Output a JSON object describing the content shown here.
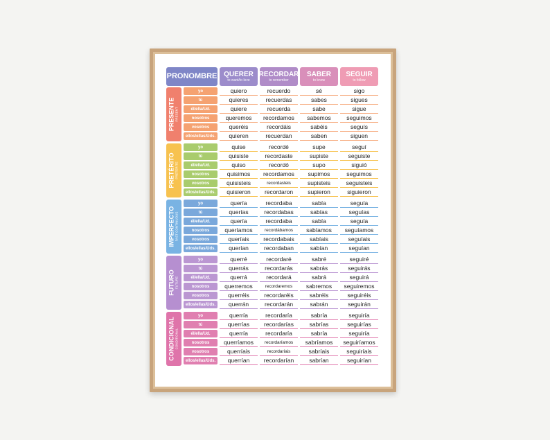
{
  "header": {
    "pronoun": "PRONOMBRE",
    "verbs": [
      {
        "name": "QUERER",
        "sub": "to want/to love"
      },
      {
        "name": "RECORDAR",
        "sub": "to remember"
      },
      {
        "name": "SABER",
        "sub": "to know"
      },
      {
        "name": "SEGUIR",
        "sub": "to follow"
      }
    ]
  },
  "colors": {
    "pronoun_header": "#7f86c7",
    "verb_headers": [
      "#9c8ccb",
      "#b08cc8",
      "#d98fba",
      "#ef9cb4"
    ]
  },
  "pronouns": [
    "yo",
    "tú",
    "él/ella/Ud.",
    "nosotros",
    "vosotros",
    "ellos/ellas/Uds."
  ],
  "tenses": [
    {
      "name": "PRESENTE",
      "english": "PRESENT",
      "color": "#f0806d",
      "pron_color": "#f5a271",
      "line_color": "#f5a271",
      "rows": [
        [
          "quiero",
          "recuerdo",
          "sé",
          "sigo"
        ],
        [
          "quieres",
          "recuerdas",
          "sabes",
          "sigues"
        ],
        [
          "quiere",
          "recuerda",
          "sabe",
          "sigue"
        ],
        [
          "queremos",
          "recordamos",
          "sabemos",
          "seguimos"
        ],
        [
          "queréis",
          "recordáis",
          "sabéis",
          "seguís"
        ],
        [
          "quieren",
          "recuerdan",
          "saben",
          "siguen"
        ]
      ]
    },
    {
      "name": "PRETÉRITO",
      "english": "PRETERITE",
      "color": "#f7c24f",
      "pron_color": "#a9cc6d",
      "line_color": "#f7c24f",
      "rows": [
        [
          "quise",
          "recordé",
          "supe",
          "seguí"
        ],
        [
          "quisiste",
          "recordaste",
          "supiste",
          "seguiste"
        ],
        [
          "quiso",
          "recordó",
          "supo",
          "siguió"
        ],
        [
          "quisimos",
          "recordamos",
          "supimos",
          "seguimos"
        ],
        [
          "quisisteis",
          "recordasteis",
          "supisteis",
          "seguisteis"
        ],
        [
          "quisieron",
          "recordaron",
          "supieron",
          "siguieron"
        ]
      ]
    },
    {
      "name": "IMPERFECTO",
      "english": "PAST CONTINUOUS",
      "color": "#79b3e3",
      "pron_color": "#7aa8db",
      "line_color": "#79b3e3",
      "rows": [
        [
          "quería",
          "recordaba",
          "sabía",
          "seguía"
        ],
        [
          "querías",
          "recordabas",
          "sabías",
          "seguías"
        ],
        [
          "quería",
          "recordaba",
          "sabía",
          "seguía"
        ],
        [
          "queríamos",
          "recordábamos",
          "sabíamos",
          "seguíamos"
        ],
        [
          "queríais",
          "recordabais",
          "sabíais",
          "seguíais"
        ],
        [
          "querían",
          "recordaban",
          "sabían",
          "seguían"
        ]
      ]
    },
    {
      "name": "FUTURO",
      "english": "FUTURE",
      "color": "#b68fd0",
      "pron_color": "#bb97d2",
      "line_color": "#b68fd0",
      "rows": [
        [
          "querré",
          "recordaré",
          "sabré",
          "seguiré"
        ],
        [
          "querrás",
          "recordarás",
          "sabrás",
          "seguirás"
        ],
        [
          "querrá",
          "recordará",
          "sabrá",
          "seguirá"
        ],
        [
          "querremos",
          "recordaremos",
          "sabremos",
          "seguiremos"
        ],
        [
          "querréis",
          "recordaréis",
          "sabréis",
          "seguiréis"
        ],
        [
          "querrán",
          "recordarán",
          "sabrán",
          "seguirán"
        ]
      ]
    },
    {
      "name": "CONDICIONAL",
      "english": "CONDITIONAL",
      "color": "#df74aa",
      "pron_color": "#e07fb0",
      "line_color": "#df74aa",
      "rows": [
        [
          "querría",
          "recordaría",
          "sabría",
          "seguiría"
        ],
        [
          "querrías",
          "recordarías",
          "sabrías",
          "seguirías"
        ],
        [
          "querría",
          "recordaría",
          "sabría",
          "seguiría"
        ],
        [
          "querríamos",
          "recordaríamos",
          "sabríamos",
          "seguiríamos"
        ],
        [
          "querríais",
          "recordaríais",
          "sabríais",
          "seguiríais"
        ],
        [
          "querrían",
          "recordarían",
          "sabrían",
          "seguirían"
        ]
      ]
    }
  ]
}
